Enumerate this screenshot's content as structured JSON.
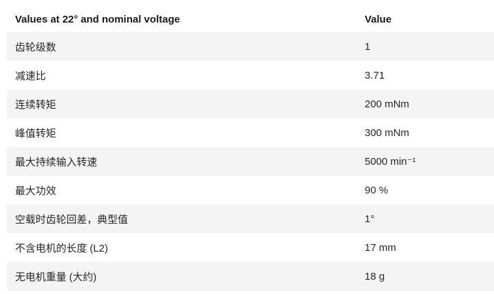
{
  "chart_data": {
    "type": "table",
    "title": "Values at 22° and nominal voltage",
    "columns": [
      "Values at 22° and nominal voltage",
      "Value"
    ],
    "rows": [
      [
        "齿轮级数",
        "1"
      ],
      [
        "减速比",
        "3.71"
      ],
      [
        "连续转矩",
        "200 mNm"
      ],
      [
        "峰值转矩",
        "300 mNm"
      ],
      [
        "最大持续输入转速",
        "5000 min⁻¹"
      ],
      [
        "最大功效",
        "90 %"
      ],
      [
        "空载时齿轮回差，典型值",
        "1°"
      ],
      [
        "不含电机的长度 (L2)",
        "17 mm"
      ],
      [
        "无电机重量 (大约)",
        "18 g"
      ]
    ],
    "layout": {
      "striped": true,
      "stripe_starts_on_first_row": true,
      "grid": false
    }
  },
  "colors": {
    "stripe": "#f4f4f4",
    "row_text": "#262626",
    "header_text": "#1a1a1a",
    "background": "#ffffff"
  }
}
